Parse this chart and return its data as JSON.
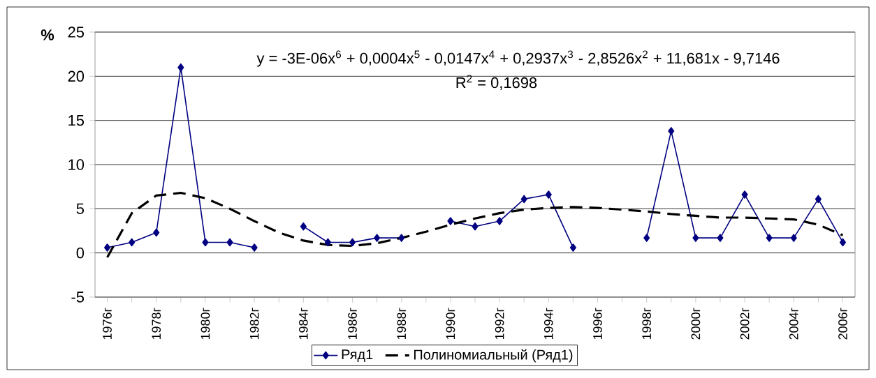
{
  "chart_data": {
    "type": "line",
    "ylabel": "%",
    "categories": [
      "1976г",
      null,
      "1978г",
      null,
      "1980г",
      null,
      "1982г",
      null,
      "1984г",
      null,
      "1986г",
      null,
      "1988г",
      null,
      "1990г",
      null,
      "1992г",
      null,
      "1994г",
      null,
      "1996г",
      null,
      "1998г",
      null,
      "2000г",
      null,
      "2002г",
      null,
      "2004г",
      null,
      "2006г"
    ],
    "series": [
      {
        "name": "Ряд1",
        "color": "#000080",
        "marker": "diamond",
        "line_style": "solid",
        "values": [
          0.6,
          1.2,
          2.3,
          21,
          1.2,
          1.2,
          0.6,
          null,
          3.0,
          1.2,
          1.2,
          1.7,
          1.7,
          null,
          3.6,
          3.0,
          3.6,
          6.1,
          6.6,
          0.6,
          null,
          null,
          1.7,
          13.8,
          1.7,
          1.7,
          6.6,
          1.7,
          1.7,
          6.1,
          1.2
        ]
      },
      {
        "name": "Полиномиальный (Ряд1)",
        "color": "#000000",
        "marker": "none",
        "line_style": "dashed",
        "values": [
          -0.5,
          4.5,
          6.5,
          6.8,
          6.2,
          5.0,
          3.6,
          2.3,
          1.4,
          0.9,
          0.8,
          1.1,
          1.7,
          2.4,
          3.2,
          3.9,
          4.5,
          4.9,
          5.1,
          5.2,
          5.1,
          4.9,
          4.7,
          4.4,
          4.2,
          4.0,
          4.0,
          3.9,
          3.8,
          3.2,
          2.0
        ]
      }
    ],
    "ylim": [
      -5,
      25
    ],
    "yticks": [
      -5,
      0,
      5,
      10,
      15,
      20,
      25
    ],
    "grid": "y",
    "legend": "bottom",
    "annotations": [
      "y = -3E-06x$^{6}$ + 0,0004x$^{5}$ - 0,0147x$^{4}$ + 0,2937x$^{3}$ - 2,8526x$^{2}$ + 11,681x - 9,7146",
      "R$^{2}$ = 0,1698"
    ]
  }
}
